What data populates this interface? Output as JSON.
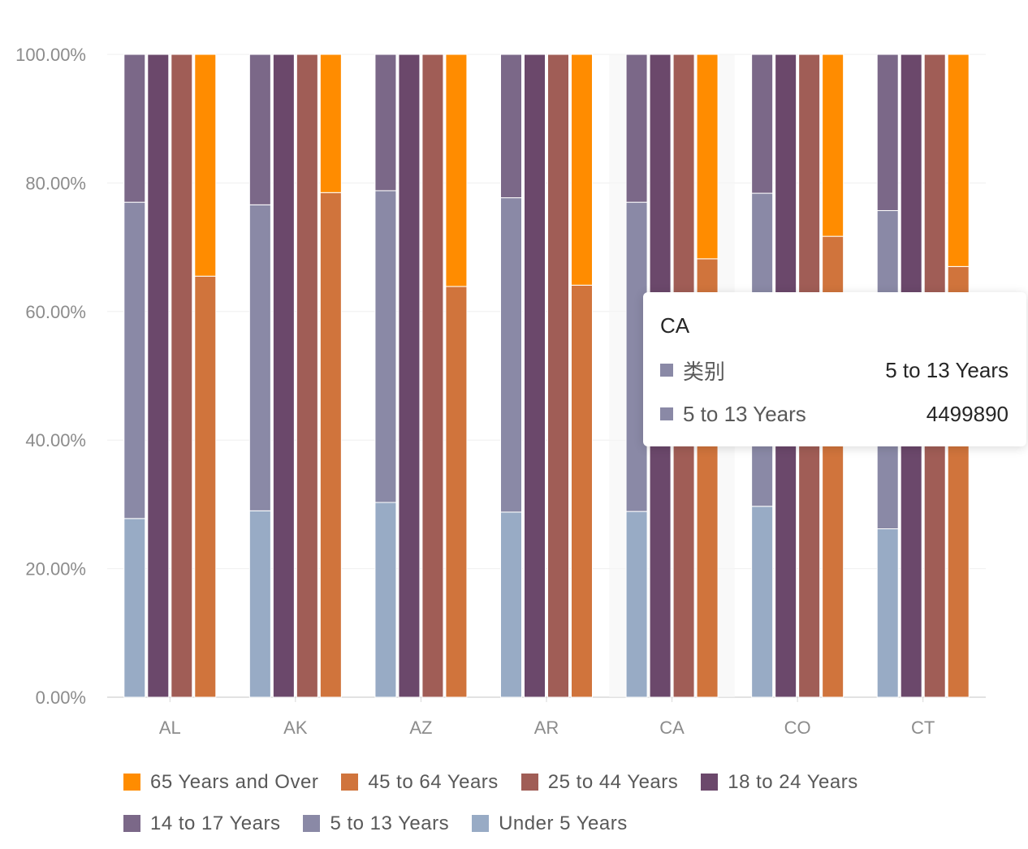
{
  "chart_data": {
    "type": "bar",
    "stacking": "percent-grouped",
    "categories": [
      "AL",
      "AK",
      "AZ",
      "AR",
      "CA",
      "CO",
      "CT"
    ],
    "y_ticks": [
      "0.00%",
      "20.00%",
      "40.00%",
      "60.00%",
      "80.00%",
      "100.00%"
    ],
    "ylim": [
      0,
      100
    ],
    "grid": true,
    "legend_position": "bottom",
    "groups": [
      {
        "stack": "children",
        "segments": [
          {
            "series": "Under 5 Years",
            "values": [
              27.8,
              29.0,
              30.3,
              28.8,
              28.9,
              29.7,
              26.2
            ]
          },
          {
            "series": "5 to 13 Years",
            "values": [
              49.2,
              47.6,
              48.5,
              48.9,
              48.1,
              48.7,
              49.5
            ]
          },
          {
            "series": "14 to 17 Years",
            "values": [
              23.0,
              23.4,
              21.2,
              22.3,
              23.0,
              21.6,
              24.3
            ]
          }
        ]
      },
      {
        "stack": "young-adults",
        "segments": [
          {
            "series": "18 to 24 Years",
            "values": [
              100,
              100,
              100,
              100,
              100,
              100,
              100
            ]
          }
        ]
      },
      {
        "stack": "adults",
        "segments": [
          {
            "series": "25 to 44 Years",
            "values": [
              100,
              100,
              100,
              100,
              100,
              100,
              100
            ]
          }
        ]
      },
      {
        "stack": "seniors",
        "segments": [
          {
            "series": "45 to 64 Years",
            "values": [
              65.5,
              78.5,
              63.9,
              64.1,
              68.2,
              71.7,
              67.0
            ]
          },
          {
            "series": "65 Years and Over",
            "values": [
              34.5,
              21.5,
              36.1,
              35.9,
              31.8,
              28.3,
              33.0
            ]
          }
        ]
      }
    ],
    "colors": {
      "65 Years and Over": "#ff8c00",
      "45 to 64 Years": "#d0743c",
      "25 to 44 Years": "#a05d56",
      "18 to 24 Years": "#6b486b",
      "14 to 17 Years": "#7b6888",
      "5 to 13 Years": "#8a89a6",
      "Under 5 Years": "#98abc5"
    },
    "legend": [
      [
        "65 Years and Over",
        "45 to 64 Years",
        "25 to 44 Years",
        "18 to 24 Years"
      ],
      [
        "14 to 17 Years",
        "5 to 13 Years",
        "Under 5 Years"
      ]
    ],
    "highlighted_category": "CA"
  },
  "tooltip": {
    "title": "CA",
    "rows": [
      {
        "name": "类别",
        "value": "5 to 13 Years",
        "color": "#8a89a6"
      },
      {
        "name": "5 to 13 Years",
        "value": "4499890",
        "color": "#8a89a6"
      }
    ]
  }
}
